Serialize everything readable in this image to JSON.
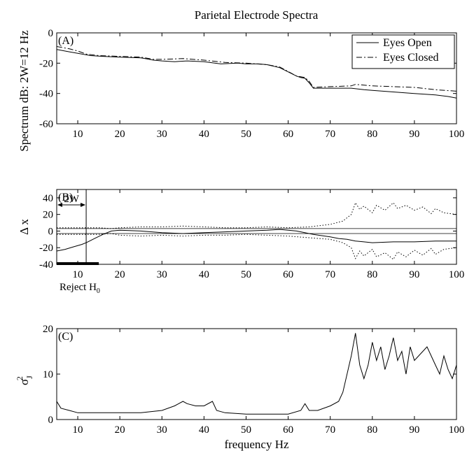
{
  "chart_data": [
    {
      "type": "line",
      "panel_label": "(A)",
      "title": "Parietal Electrode Spectra",
      "ylabel": "Spectrum dB: 2W=12 Hz",
      "xlabel": "",
      "xlim": [
        5,
        100
      ],
      "ylim": [
        -60,
        0
      ],
      "xticks": [
        10,
        20,
        30,
        40,
        50,
        60,
        70,
        80,
        90,
        100
      ],
      "yticks": [
        0,
        -20,
        -40,
        -60
      ],
      "legend": {
        "position": "top-right",
        "entries": [
          "Eyes Open",
          "Eyes Closed"
        ]
      },
      "series": [
        {
          "name": "Eyes Open",
          "style": "solid",
          "x": [
            5,
            8,
            10,
            13,
            16,
            20,
            25,
            26,
            28,
            30,
            33,
            36,
            40,
            44,
            48,
            50,
            53,
            55,
            58,
            62,
            63,
            64,
            65,
            66,
            70,
            75,
            78,
            80,
            85,
            90,
            95,
            98,
            100
          ],
          "y": [
            -11,
            -12.5,
            -13.5,
            -15,
            -15.5,
            -16,
            -16.5,
            -17,
            -18,
            -18.5,
            -19,
            -18.5,
            -19,
            -20.5,
            -20,
            -20.5,
            -20.5,
            -21,
            -23,
            -28.5,
            -29.5,
            -30,
            -33,
            -36.5,
            -36.5,
            -36.5,
            -37.5,
            -38,
            -39,
            -40,
            -41,
            -42,
            -43
          ]
        },
        {
          "name": "Eyes Closed",
          "style": "dash-dot",
          "x": [
            5,
            8,
            10,
            12,
            15,
            20,
            25,
            28,
            30,
            35,
            40,
            45,
            50,
            55,
            58,
            62,
            64,
            65,
            66,
            70,
            75,
            76,
            80,
            85,
            90,
            95,
            100
          ],
          "y": [
            -9,
            -10.5,
            -12,
            -14,
            -15,
            -15.5,
            -16,
            -17.5,
            -17.5,
            -17,
            -18,
            -19.5,
            -20,
            -21,
            -22.5,
            -28.5,
            -29.5,
            -32,
            -36,
            -35.5,
            -35,
            -34,
            -35,
            -35.5,
            -36,
            -37.5,
            -38.5
          ]
        }
      ]
    },
    {
      "type": "line",
      "panel_label": "(B)",
      "ylabel": "Δ x",
      "xlabel": "",
      "xlim": [
        5,
        100
      ],
      "ylim": [
        -40,
        50
      ],
      "xticks": [
        10,
        20,
        30,
        40,
        50,
        60,
        70,
        80,
        90,
        100
      ],
      "yticks": [
        40,
        20,
        0,
        -20,
        -40
      ],
      "annotations": {
        "bandwidth_label": "2W",
        "bandwidth_x": 12,
        "reject_label": "Reject H",
        "reject_subscript": "0",
        "reject_region": [
          5,
          15
        ]
      },
      "reference_lines_y": [
        3,
        -3
      ],
      "series": [
        {
          "name": "",
          "style": "solid",
          "x": [
            5,
            7,
            9,
            11,
            12,
            14,
            16,
            18,
            20,
            25,
            30,
            35,
            40,
            45,
            50,
            55,
            58,
            62,
            66,
            70,
            72,
            74,
            76,
            78,
            80,
            85,
            90,
            95,
            100
          ],
          "y": [
            -24,
            -22,
            -19,
            -16,
            -14,
            -9,
            -4,
            0,
            1,
            0,
            -2,
            -3,
            -2,
            -1,
            0,
            1,
            2,
            0,
            -4,
            -7,
            -9,
            -10,
            -12,
            -13,
            -14,
            -13,
            -13,
            -12,
            -12
          ]
        },
        {
          "name": "",
          "style": "dotted",
          "x": [
            5,
            10,
            15,
            18,
            20,
            25,
            30,
            35,
            40,
            45,
            50,
            55,
            60,
            65,
            70,
            73,
            75,
            76,
            77,
            78,
            80,
            81,
            83,
            85,
            86,
            88,
            90,
            92,
            94,
            95,
            97,
            100
          ],
          "y": [
            4,
            4,
            4,
            3,
            4,
            5,
            5,
            6,
            5,
            4,
            4,
            5,
            4,
            5,
            8,
            12,
            20,
            34,
            26,
            30,
            22,
            31,
            25,
            34,
            27,
            31,
            25,
            29,
            21,
            27,
            22,
            20
          ]
        },
        {
          "name": "",
          "style": "dotted",
          "x": [
            5,
            10,
            15,
            18,
            20,
            25,
            30,
            35,
            40,
            45,
            50,
            55,
            60,
            65,
            70,
            73,
            75,
            76,
            77,
            78,
            80,
            81,
            83,
            85,
            86,
            88,
            90,
            92,
            94,
            95,
            97,
            100
          ],
          "y": [
            -4,
            -4,
            -4,
            -3,
            -5,
            -6,
            -5,
            -6,
            -5,
            -5,
            -4,
            -5,
            -6,
            -8,
            -10,
            -14,
            -20,
            -33,
            -24,
            -30,
            -22,
            -31,
            -26,
            -34,
            -25,
            -31,
            -23,
            -29,
            -21,
            -28,
            -22,
            -20
          ]
        }
      ]
    },
    {
      "type": "line",
      "panel_label": "(C)",
      "ylabel": "σ J 2",
      "xlabel": "frequency Hz",
      "xlim": [
        5,
        100
      ],
      "ylim": [
        0,
        20
      ],
      "xticks": [
        10,
        20,
        30,
        40,
        50,
        60,
        70,
        80,
        90,
        100
      ],
      "yticks": [
        20,
        10,
        0
      ],
      "series": [
        {
          "name": "",
          "style": "solid",
          "x": [
            5,
            6,
            8,
            10,
            13,
            16,
            20,
            25,
            30,
            33,
            35,
            36,
            38,
            40,
            42,
            43,
            45,
            50,
            55,
            60,
            63,
            64,
            65,
            67,
            70,
            72,
            73,
            74,
            75,
            76,
            77,
            78,
            79,
            80,
            81,
            82,
            83,
            84,
            85,
            86,
            87,
            88,
            89,
            90,
            91,
            92,
            93,
            94,
            95,
            96,
            97,
            98,
            99,
            100
          ],
          "y": [
            4,
            2.5,
            2,
            1.5,
            1.5,
            1.5,
            1.5,
            1.5,
            2,
            3,
            4,
            3.5,
            3,
            3,
            4,
            2,
            1.5,
            1.2,
            1.2,
            1.2,
            2,
            3.5,
            2,
            2,
            3,
            4,
            6,
            10,
            14,
            19,
            12,
            9,
            12,
            17,
            13,
            16,
            11,
            14,
            18,
            13,
            15,
            10,
            16,
            13,
            14,
            15,
            16,
            14,
            12,
            10,
            14,
            11,
            9,
            12
          ]
        }
      ]
    }
  ]
}
